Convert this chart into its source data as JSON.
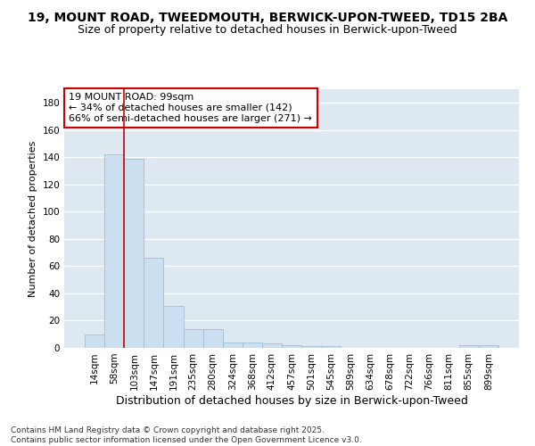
{
  "title1": "19, MOUNT ROAD, TWEEDMOUTH, BERWICK-UPON-TWEED, TD15 2BA",
  "title2": "Size of property relative to detached houses in Berwick-upon-Tweed",
  "xlabel": "Distribution of detached houses by size in Berwick-upon-Tweed",
  "ylabel": "Number of detached properties",
  "categories": [
    "14sqm",
    "58sqm",
    "103sqm",
    "147sqm",
    "191sqm",
    "235sqm",
    "280sqm",
    "324sqm",
    "368sqm",
    "412sqm",
    "457sqm",
    "501sqm",
    "545sqm",
    "589sqm",
    "634sqm",
    "678sqm",
    "722sqm",
    "766sqm",
    "811sqm",
    "855sqm",
    "899sqm"
  ],
  "values": [
    10,
    142,
    139,
    66,
    31,
    14,
    14,
    4,
    4,
    3,
    2,
    1,
    1,
    0,
    0,
    0,
    0,
    0,
    0,
    2,
    2
  ],
  "bar_color": "#ccdff0",
  "bar_edge_color": "#a0bfd4",
  "vline_x": 1.5,
  "vline_color": "#cc0000",
  "annotation_text": "19 MOUNT ROAD: 99sqm\n← 34% of detached houses are smaller (142)\n66% of semi-detached houses are larger (271) →",
  "annotation_box_color": "white",
  "annotation_box_edge": "#cc0000",
  "ylim": [
    0,
    190
  ],
  "yticks": [
    0,
    20,
    40,
    60,
    80,
    100,
    120,
    140,
    160,
    180
  ],
  "bg_color": "#dde8f0",
  "grid_color": "white",
  "footnote": "Contains HM Land Registry data © Crown copyright and database right 2025.\nContains public sector information licensed under the Open Government Licence v3.0.",
  "title1_fontsize": 10,
  "title2_fontsize": 9,
  "annotation_fontsize": 8,
  "tick_fontsize": 7.5,
  "xlabel_fontsize": 9,
  "ylabel_fontsize": 8,
  "footnote_fontsize": 6.5
}
